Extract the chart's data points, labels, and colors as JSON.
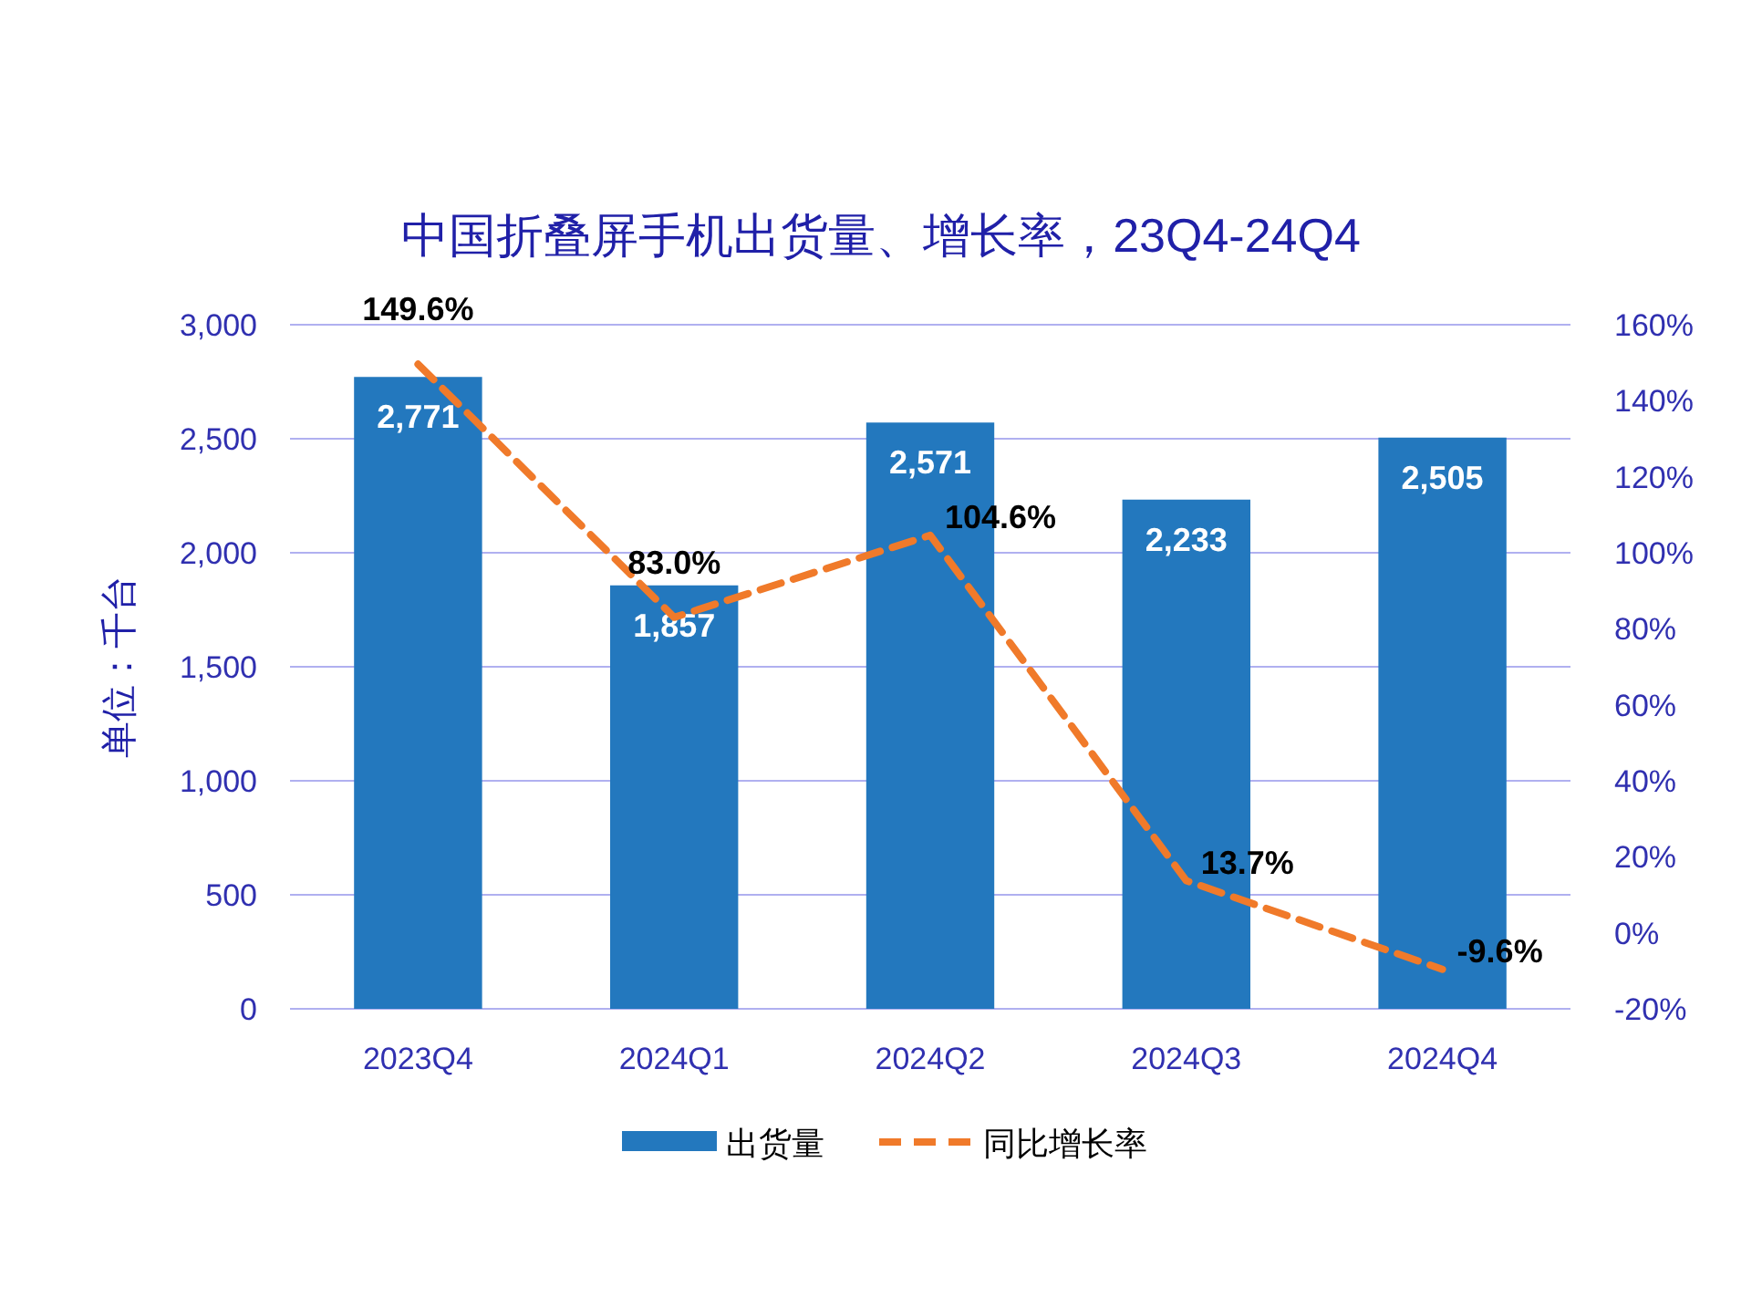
{
  "chart_data": {
    "type": "bar",
    "title": "中国折叠屏手机出货量、增长率，23Q4-24Q4",
    "ylabel": "单位：千台",
    "categories": [
      "2023Q4",
      "2024Q1",
      "2024Q2",
      "2024Q3",
      "2024Q4"
    ],
    "series": [
      {
        "name": "出货量",
        "color": "#2378be",
        "values": [
          2771,
          1857,
          2571,
          2233,
          2505
        ],
        "value_labels": [
          "2,771",
          "1,857",
          "2,571",
          "2,233",
          "2,505"
        ]
      },
      {
        "name": "同比增长率",
        "type": "line",
        "axis": "y2",
        "color": "#f07a2a",
        "line_style": "dashed",
        "values": [
          149.6,
          83.0,
          104.6,
          13.7,
          -9.6
        ],
        "value_labels": [
          "149.6%",
          "83.0%",
          "104.6%",
          "13.7%",
          "-9.6%"
        ]
      }
    ],
    "ylim": [
      0,
      3000
    ],
    "yticks": [
      {
        "value": 0,
        "label": "0"
      },
      {
        "value": 500,
        "label": "500"
      },
      {
        "value": 1000,
        "label": "1,000"
      },
      {
        "value": 1500,
        "label": "1,500"
      },
      {
        "value": 2000,
        "label": "2,000"
      },
      {
        "value": 2500,
        "label": "2,500"
      },
      {
        "value": 3000,
        "label": "3,000"
      }
    ],
    "y2lim": [
      -20,
      160
    ],
    "y2ticks": [
      {
        "value": -20,
        "label": "-20%"
      },
      {
        "value": 0,
        "label": "0%"
      },
      {
        "value": 20,
        "label": "20%"
      },
      {
        "value": 40,
        "label": "40%"
      },
      {
        "value": 60,
        "label": "60%"
      },
      {
        "value": 80,
        "label": "80%"
      },
      {
        "value": 100,
        "label": "100%"
      },
      {
        "value": 120,
        "label": "120%"
      },
      {
        "value": 140,
        "label": "140%"
      },
      {
        "value": 160,
        "label": "160%"
      }
    ],
    "grid": "y",
    "legend": "bottom"
  }
}
